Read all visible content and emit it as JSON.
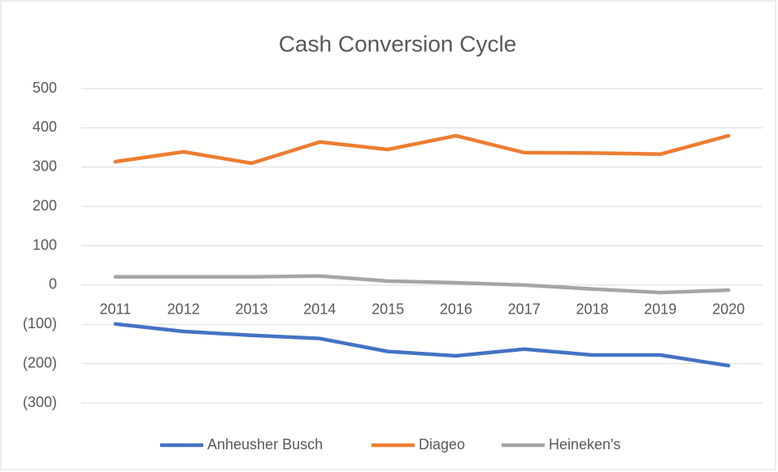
{
  "chart_data": {
    "type": "line",
    "title": "Cash Conversion Cycle",
    "categories": [
      "2011",
      "2012",
      "2013",
      "2014",
      "2015",
      "2016",
      "2017",
      "2018",
      "2019",
      "2020"
    ],
    "series": [
      {
        "name": "Anheusher Busch",
        "color": "#4472c4",
        "values": [
          -99,
          -118,
          -128,
          -136,
          -169,
          -180,
          -163,
          -178,
          -178,
          -205
        ]
      },
      {
        "name": "Diageo",
        "color": "#ed7d31",
        "values": [
          314,
          339,
          310,
          364,
          345,
          380,
          337,
          336,
          333,
          380
        ]
      },
      {
        "name": "Heineken's",
        "color": "#a5a5a5",
        "values": [
          21,
          21,
          21,
          23,
          10,
          6,
          0,
          -10,
          -19,
          -13
        ]
      }
    ],
    "ylim": [
      -300,
      500
    ],
    "yticks": [
      {
        "value": -300,
        "label": "(300)"
      },
      {
        "value": -200,
        "label": "(200)"
      },
      {
        "value": -100,
        "label": "(100)"
      },
      0,
      100,
      200,
      300,
      400,
      500
    ],
    "grid": true,
    "legend": "bottom"
  }
}
